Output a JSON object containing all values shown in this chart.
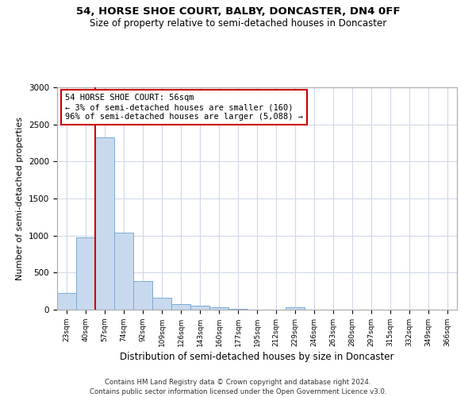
{
  "title1": "54, HORSE SHOE COURT, BALBY, DONCASTER, DN4 0FF",
  "title2": "Size of property relative to semi-detached houses in Doncaster",
  "xlabel": "Distribution of semi-detached houses by size in Doncaster",
  "ylabel": "Number of semi-detached properties",
  "categories": [
    "23sqm",
    "40sqm",
    "57sqm",
    "74sqm",
    "92sqm",
    "109sqm",
    "126sqm",
    "143sqm",
    "160sqm",
    "177sqm",
    "195sqm",
    "212sqm",
    "229sqm",
    "246sqm",
    "263sqm",
    "280sqm",
    "297sqm",
    "315sqm",
    "332sqm",
    "349sqm",
    "366sqm"
  ],
  "values": [
    220,
    970,
    2330,
    1040,
    390,
    160,
    80,
    50,
    30,
    10,
    5,
    5,
    30,
    5,
    5,
    0,
    0,
    0,
    0,
    0,
    0
  ],
  "bar_color": "#c8d9ee",
  "bar_edge_color": "#7aabd4",
  "annotation_text": "54 HORSE SHOE COURT: 56sqm\n← 3% of semi-detached houses are smaller (160)\n96% of semi-detached houses are larger (5,088) →",
  "annotation_box_color": "#ffffff",
  "annotation_border_color": "#cc0000",
  "red_line_color": "#cc0000",
  "ylim": [
    0,
    3000
  ],
  "yticks": [
    0,
    500,
    1000,
    1500,
    2000,
    2500,
    3000
  ],
  "footer1": "Contains HM Land Registry data © Crown copyright and database right 2024.",
  "footer2": "Contains public sector information licensed under the Open Government Licence v3.0.",
  "background_color": "#ffffff",
  "grid_color": "#d0d8e8"
}
